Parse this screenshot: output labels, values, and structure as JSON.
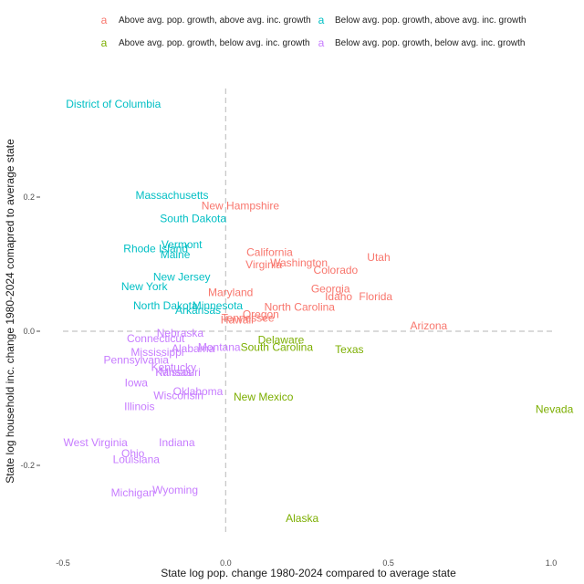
{
  "chart_data": {
    "type": "scatter",
    "xlabel": "State log pop. change 1980-2024 compared to average state",
    "ylabel": "State log household inc. change 1980-2024 comapred to average state",
    "xlim": [
      -0.5,
      1.0
    ],
    "ylim": [
      -0.3,
      0.35
    ],
    "x_ticks": [
      -0.5,
      0.0,
      0.5,
      1.0
    ],
    "x_tick_labels": [
      "-0.5",
      "0.0",
      "0.5",
      "1.0"
    ],
    "y_ticks": [
      -0.2,
      0.0,
      0.2
    ],
    "y_tick_labels": [
      "-0.2",
      "0.0",
      "0.2"
    ],
    "reference_lines": {
      "x": 0,
      "y": 0,
      "style": "dashed"
    },
    "grid": false,
    "legend_position": "top",
    "legend_key_glyph": "a",
    "colors": {
      "above_above": "#F8766D",
      "below_above": "#00BFC4",
      "above_below": "#7CAE00",
      "below_below": "#C77CFF"
    },
    "series": [
      {
        "name": "Above avg. pop. growth, above avg. inc. growth",
        "color_key": "above_above",
        "points": [
          {
            "label": "New Hampshire",
            "x": 0.045,
            "y": 0.187
          },
          {
            "label": "California",
            "x": 0.135,
            "y": 0.118
          },
          {
            "label": "Virginia",
            "x": 0.117,
            "y": 0.099
          },
          {
            "label": "Washington",
            "x": 0.225,
            "y": 0.102
          },
          {
            "label": "Utah",
            "x": 0.47,
            "y": 0.11
          },
          {
            "label": "Colorado",
            "x": 0.338,
            "y": 0.091
          },
          {
            "label": "Georgia",
            "x": 0.322,
            "y": 0.063
          },
          {
            "label": "Idaho",
            "x": 0.347,
            "y": 0.052
          },
          {
            "label": "Florida",
            "x": 0.461,
            "y": 0.052
          },
          {
            "label": "Maryland",
            "x": 0.015,
            "y": 0.058
          },
          {
            "label": "North Carolina",
            "x": 0.227,
            "y": 0.036
          },
          {
            "label": "Oregon",
            "x": 0.108,
            "y": 0.025
          },
          {
            "label": "Tennessee",
            "x": 0.068,
            "y": 0.02
          },
          {
            "label": "Hawaii",
            "x": 0.035,
            "y": 0.017
          },
          {
            "label": "Arizona",
            "x": 0.624,
            "y": 0.008
          }
        ]
      },
      {
        "name": "Below avg. pop. growth, above avg. inc. growth",
        "color_key": "below_above",
        "points": [
          {
            "label": "District of Columbia",
            "x": -0.345,
            "y": 0.339
          },
          {
            "label": "Massachusetts",
            "x": -0.165,
            "y": 0.203
          },
          {
            "label": "South Dakota",
            "x": -0.1,
            "y": 0.168
          },
          {
            "label": "Vermont",
            "x": -0.135,
            "y": 0.129
          },
          {
            "label": "Rhode Island",
            "x": -0.215,
            "y": 0.123
          },
          {
            "label": "Maine",
            "x": -0.155,
            "y": 0.114
          },
          {
            "label": "New Jersey",
            "x": -0.135,
            "y": 0.081
          },
          {
            "label": "New York",
            "x": -0.25,
            "y": 0.067
          },
          {
            "label": "North Dakota",
            "x": -0.185,
            "y": 0.038
          },
          {
            "label": "Minnesota",
            "x": -0.025,
            "y": 0.038
          },
          {
            "label": "Arkansas",
            "x": -0.085,
            "y": 0.031
          }
        ]
      },
      {
        "name": "Above avg. pop. growth, below avg. inc. growth",
        "color_key": "above_below",
        "points": [
          {
            "label": "Delaware",
            "x": 0.17,
            "y": -0.013
          },
          {
            "label": "South Carolina",
            "x": 0.157,
            "y": -0.024
          },
          {
            "label": "Texas",
            "x": 0.38,
            "y": -0.027
          },
          {
            "label": "New Mexico",
            "x": 0.116,
            "y": -0.098
          },
          {
            "label": "Nevada",
            "x": 1.01,
            "y": -0.116
          },
          {
            "label": "Alaska",
            "x": 0.235,
            "y": -0.279
          }
        ]
      },
      {
        "name": "Below avg. pop. growth, below avg. inc. growth",
        "color_key": "below_below",
        "points": [
          {
            "label": "Nebraska",
            "x": -0.14,
            "y": -0.003
          },
          {
            "label": "Connecticut",
            "x": -0.215,
            "y": -0.011
          },
          {
            "label": "Montana",
            "x": -0.02,
            "y": -0.024
          },
          {
            "label": "Alabama",
            "x": -0.1,
            "y": -0.026
          },
          {
            "label": "Mississippi",
            "x": -0.21,
            "y": -0.031
          },
          {
            "label": "Pennsylvania",
            "x": -0.275,
            "y": -0.043
          },
          {
            "label": "Kentucky",
            "x": -0.16,
            "y": -0.054
          },
          {
            "label": "Missouri",
            "x": -0.14,
            "y": -0.061
          },
          {
            "label": "Kansas",
            "x": -0.16,
            "y": -0.061
          },
          {
            "label": "Iowa",
            "x": -0.275,
            "y": -0.077
          },
          {
            "label": "Oklahoma",
            "x": -0.085,
            "y": -0.09
          },
          {
            "label": "Wisconsin",
            "x": -0.145,
            "y": -0.096
          },
          {
            "label": "Illinois",
            "x": -0.265,
            "y": -0.112
          },
          {
            "label": "West Virginia",
            "x": -0.4,
            "y": -0.166
          },
          {
            "label": "Indiana",
            "x": -0.15,
            "y": -0.166
          },
          {
            "label": "Ohio",
            "x": -0.285,
            "y": -0.182
          },
          {
            "label": "Louisiana",
            "x": -0.275,
            "y": -0.191
          },
          {
            "label": "Wyoming",
            "x": -0.155,
            "y": -0.237
          },
          {
            "label": "Michigan",
            "x": -0.285,
            "y": -0.241
          }
        ]
      }
    ]
  }
}
